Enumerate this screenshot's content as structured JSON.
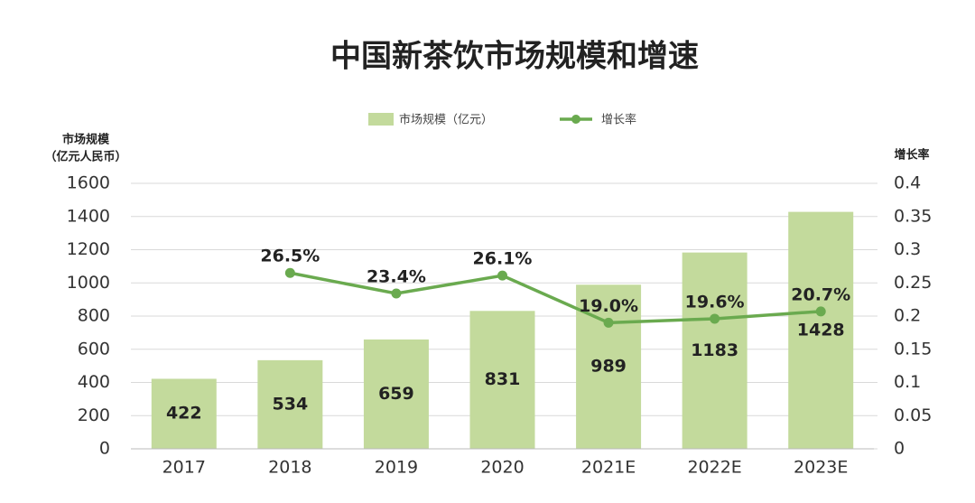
{
  "chart_data": {
    "type": "bar",
    "title": "中国新茶饮市场规模和增速",
    "y_label": [
      "市场规模",
      "（亿元人民币）"
    ],
    "y2_label": "增长率",
    "categories": [
      "2017",
      "2018",
      "2019",
      "2020",
      "2021E",
      "2022E",
      "2023E"
    ],
    "series": [
      {
        "name": "市场规模（亿元）",
        "type": "bar",
        "color": "#c3da9c",
        "values": [
          422,
          534,
          659,
          831,
          989,
          1183,
          1428
        ]
      },
      {
        "name": "增长率",
        "type": "line",
        "axis": "y2",
        "color": "#6aaa4f",
        "values": [
          null,
          0.265,
          0.234,
          0.261,
          0.19,
          0.196,
          0.207
        ],
        "value_labels": [
          null,
          "26.5%",
          "23.4%",
          "26.1%",
          "19.0%",
          "19.6%",
          "20.7%"
        ]
      }
    ],
    "ylim": [
      0,
      1600
    ],
    "yticks": [
      0,
      200,
      400,
      600,
      800,
      1000,
      1200,
      1400,
      1600
    ],
    "y2lim": [
      0,
      0.4
    ],
    "y2ticks": [
      0,
      0.05,
      0.1,
      0.15,
      0.2,
      0.25,
      0.3,
      0.35,
      0.4
    ],
    "grid": true,
    "legend": "top"
  }
}
